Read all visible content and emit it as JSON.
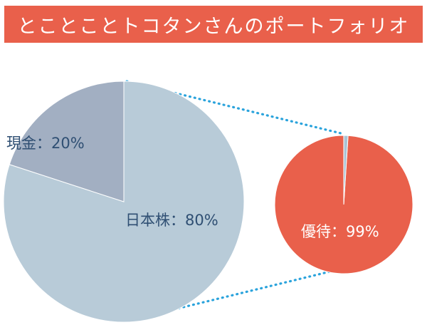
{
  "title": "とことことトコタンさんのポートフォリオ",
  "chart_data": [
    {
      "type": "pie",
      "slices": [
        {
          "label": "日本株",
          "value": 80,
          "display": "日本株：80%",
          "color": "#b8cbd8"
        },
        {
          "label": "現金",
          "value": 20,
          "display": "現金：20%",
          "color": "#a2afc2"
        }
      ]
    },
    {
      "type": "pie",
      "slices": [
        {
          "label": "優待",
          "value": 99,
          "display": "優待：99%",
          "color": "#e9604b"
        },
        {
          "label": "",
          "value": 1,
          "display": "",
          "color": "#a9c4d6"
        }
      ]
    }
  ],
  "colors": {
    "banner": "#e9604b",
    "connector": "#2aa3dc",
    "main_label": "#2f4f73"
  }
}
